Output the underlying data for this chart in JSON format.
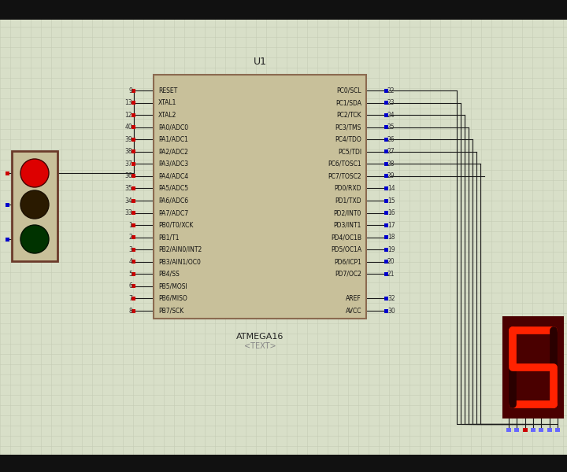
{
  "bg_color": "#d8dfc8",
  "grid_color": "#c5ccb5",
  "border_color": "#1a1a1a",
  "title_bar_color": "#1a1a1a",
  "ic_bg": "#c8c09a",
  "ic_border": "#8b6a50",
  "traffic_bg": "#c8c09a",
  "traffic_border": "#6b3a2a",
  "seg_bg": "#4a0000",
  "seg_active": "#ff2200",
  "seg_inactive": "#2a0000",
  "wire_color": "#1a1a1a",
  "pin_color_left": "#cc0000",
  "pin_color_right": "#0000cc",
  "ic_label": "U1",
  "ic_name": "ATMEGA16",
  "ic_text": "<TEXT>",
  "left_pins": [
    "RESET",
    "XTAL1",
    "XTAL2",
    "PA0/ADC0",
    "PA1/ADC1",
    "PA2/ADC2",
    "PA3/ADC3",
    "PA4/ADC4",
    "PA5/ADC5",
    "PA6/ADC6",
    "PA7/ADC7",
    "PB0/T0/XCK",
    "PB1/T1",
    "PB2/AIN0/INT2",
    "PB3/AIN1/OC0",
    "PB4/SS",
    "PB5/MOSI",
    "PB6/MISO",
    "PB7/SCK"
  ],
  "right_pins": [
    "PC0/SCL",
    "PC1/SDA",
    "PC2/TCK",
    "PC3/TMS",
    "PC4/TDO",
    "PC5/TDI",
    "PC6/TOSC1",
    "PC7/TOSC2",
    "PD0/RXD",
    "PD1/TXD",
    "PD2/INT0",
    "PD3/INT1",
    "PD4/OC1B",
    "PD5/OC1A",
    "PD6/ICP1",
    "PD7/OC2",
    "",
    "AREF",
    "AVCC"
  ],
  "left_pin_nums": [
    "9",
    "13",
    "12",
    "40",
    "39",
    "38",
    "37",
    "36",
    "35",
    "34",
    "33",
    "1",
    "2",
    "3",
    "4",
    "5",
    "6",
    "7",
    "8"
  ],
  "right_pin_nums": [
    "22",
    "23",
    "24",
    "25",
    "26",
    "27",
    "28",
    "29",
    "14",
    "15",
    "16",
    "17",
    "18",
    "19",
    "20",
    "21",
    "",
    "32",
    "30"
  ]
}
